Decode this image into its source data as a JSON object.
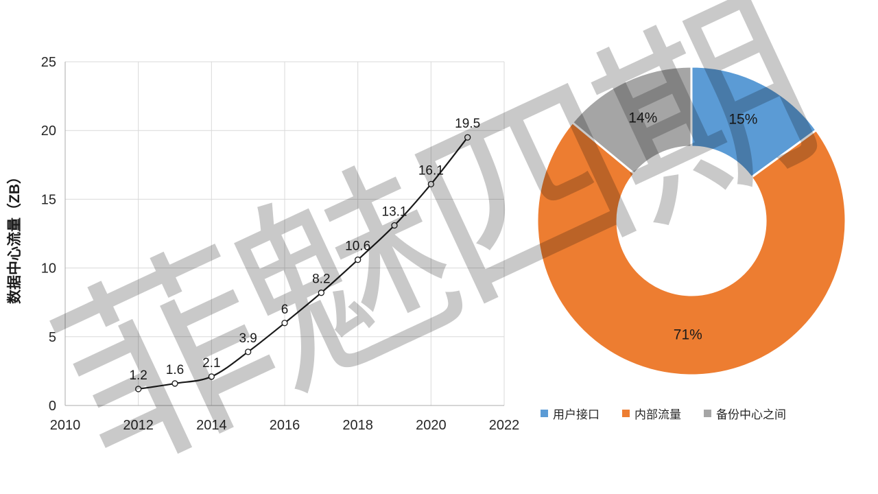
{
  "watermark": {
    "text": "菲魅四期",
    "color": "#c9c9c9"
  },
  "chart_data": [
    {
      "type": "line",
      "name": "data-center-traffic-by-year",
      "title": "",
      "xlabel": "",
      "ylabel": "数据中心流量（ZB）",
      "x": [
        2012,
        2013,
        2014,
        2015,
        2016,
        2017,
        2018,
        2019,
        2020,
        2021
      ],
      "values": [
        1.2,
        1.6,
        2.1,
        3.9,
        6,
        8.2,
        10.6,
        13.1,
        16.1,
        19.5
      ],
      "data_labels": [
        "1.2",
        "1.6",
        "2.1",
        "3.9",
        "6",
        "8.2",
        "10.6",
        "13.1",
        "16.1",
        "19.5"
      ],
      "xlim": [
        2010,
        2022
      ],
      "ylim": [
        0,
        25
      ],
      "x_ticks": [
        2010,
        2012,
        2014,
        2016,
        2018,
        2020,
        2022
      ],
      "y_ticks": [
        0,
        5,
        10,
        15,
        20,
        25
      ],
      "grid": true,
      "smooth": true,
      "marker": "open-circle",
      "line_color": "#1a1a1a",
      "marker_fill": "#ffffff",
      "legend_position": "none"
    },
    {
      "type": "pie",
      "name": "traffic-share-donut",
      "donut": true,
      "hole_ratio": 0.48,
      "start_angle_deg": 0,
      "direction": "clockwise",
      "slices": [
        {
          "label": "用户接口",
          "value": 15,
          "display": "15%",
          "color": "#5B9BD5"
        },
        {
          "label": "内部流量",
          "value": 71,
          "display": "71%",
          "color": "#ED7D31"
        },
        {
          "label": "备份中心之间",
          "value": 14,
          "display": "14%",
          "color": "#A5A5A5"
        }
      ],
      "legend_position": "bottom"
    }
  ]
}
